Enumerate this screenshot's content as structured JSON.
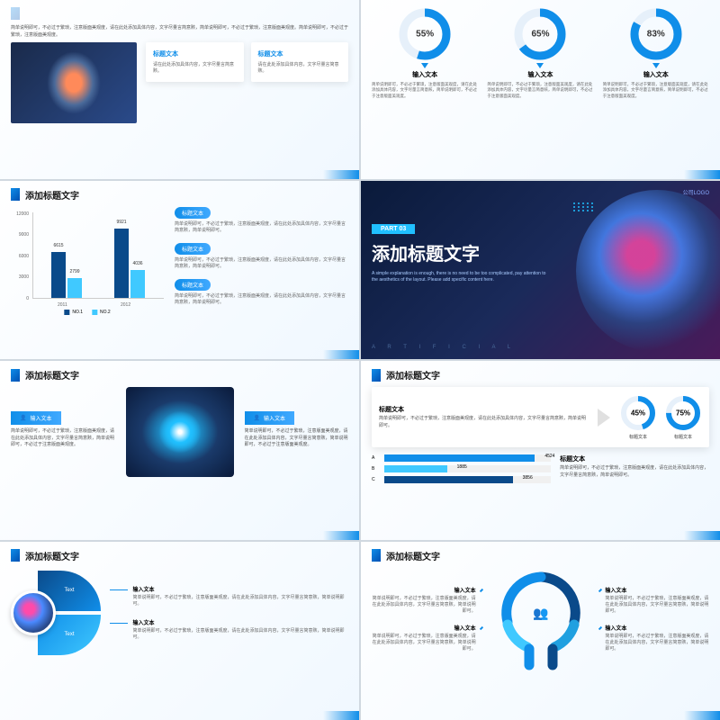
{
  "common": {
    "slide_title": "添加标题文字",
    "placeholder_short": "标题文本",
    "input_text": "输入文本",
    "desc_long": "简单说明即可，不必过于繁琐，注意版面美观度，请在此处添加具体内容，文字尽量言简意赅，简单说明即可，不必过于繁琐，注意版面美观度。简单说明即可，不必过于繁琐，注意版面美观度。",
    "desc_med": "简单说明即可，不必过于繁琐，注意版面美观度，请在此处添加具体内容，文字尽量言简意赅，简单说明即可。",
    "desc_small": "简单说明即可，不必过于繁琐，注意版面美观度，请在此处添加具体内容，文字尽量言简意赅，简单说明即可，不必过于注意版面美观度。",
    "card_text": "请在此处添加具体内容，文字尽量言简意赅。"
  },
  "colors": {
    "primary": "#108ee9",
    "primary_dark": "#0a4a8a",
    "primary_light": "#40c9ff",
    "accent": "#20c0ff",
    "track": "#e6f0fa",
    "text": "#333333",
    "text_muted": "#666666"
  },
  "s2": {
    "donuts": [
      {
        "pct": 55,
        "label": "55%"
      },
      {
        "pct": 65,
        "label": "65%"
      },
      {
        "pct": 83,
        "label": "83%"
      }
    ]
  },
  "s3": {
    "ylim": [
      0,
      12000
    ],
    "yticks": [
      "0",
      "3000",
      "6000",
      "9000",
      "12000"
    ],
    "groups": [
      {
        "year": "2011",
        "v1": 6615,
        "v2": 2799,
        "v1_label": "6615",
        "v2_label": "2799"
      },
      {
        "year": "2012",
        "v1": 9921,
        "v2": 4036,
        "v1_label": "9921",
        "v2_label": "4036"
      }
    ],
    "legend": [
      "NO.1",
      "NO.2"
    ],
    "bar_colors": [
      "#0a4a8a",
      "#40c9ff"
    ]
  },
  "s4": {
    "logo": "公司LOGO",
    "part": "PART 03",
    "title": "添加标题文字",
    "desc": "A simple explanation is enough, there is no need to be too complicated, pay attention to the aesthetics of the layout. Please add specific content here.",
    "footer": "A R T I F I C I A L"
  },
  "s6": {
    "mini": [
      {
        "pct": 45,
        "label": "45%",
        "sub": "标题文本"
      },
      {
        "pct": 75,
        "label": "75%",
        "sub": "标题文本"
      }
    ],
    "hbars_title": "标题文本",
    "hbars": [
      {
        "label": "A",
        "v": 4524,
        "max": 5000,
        "label_v": "4524",
        "color": "#108ee9"
      },
      {
        "label": "B",
        "v": 1885,
        "max": 5000,
        "label_v": "1885",
        "color": "#40c9ff"
      },
      {
        "label": "C",
        "v": 3856,
        "max": 5000,
        "label_v": "3856",
        "color": "#0a4a8a"
      }
    ]
  },
  "s7": {
    "arc_label": "Text"
  }
}
